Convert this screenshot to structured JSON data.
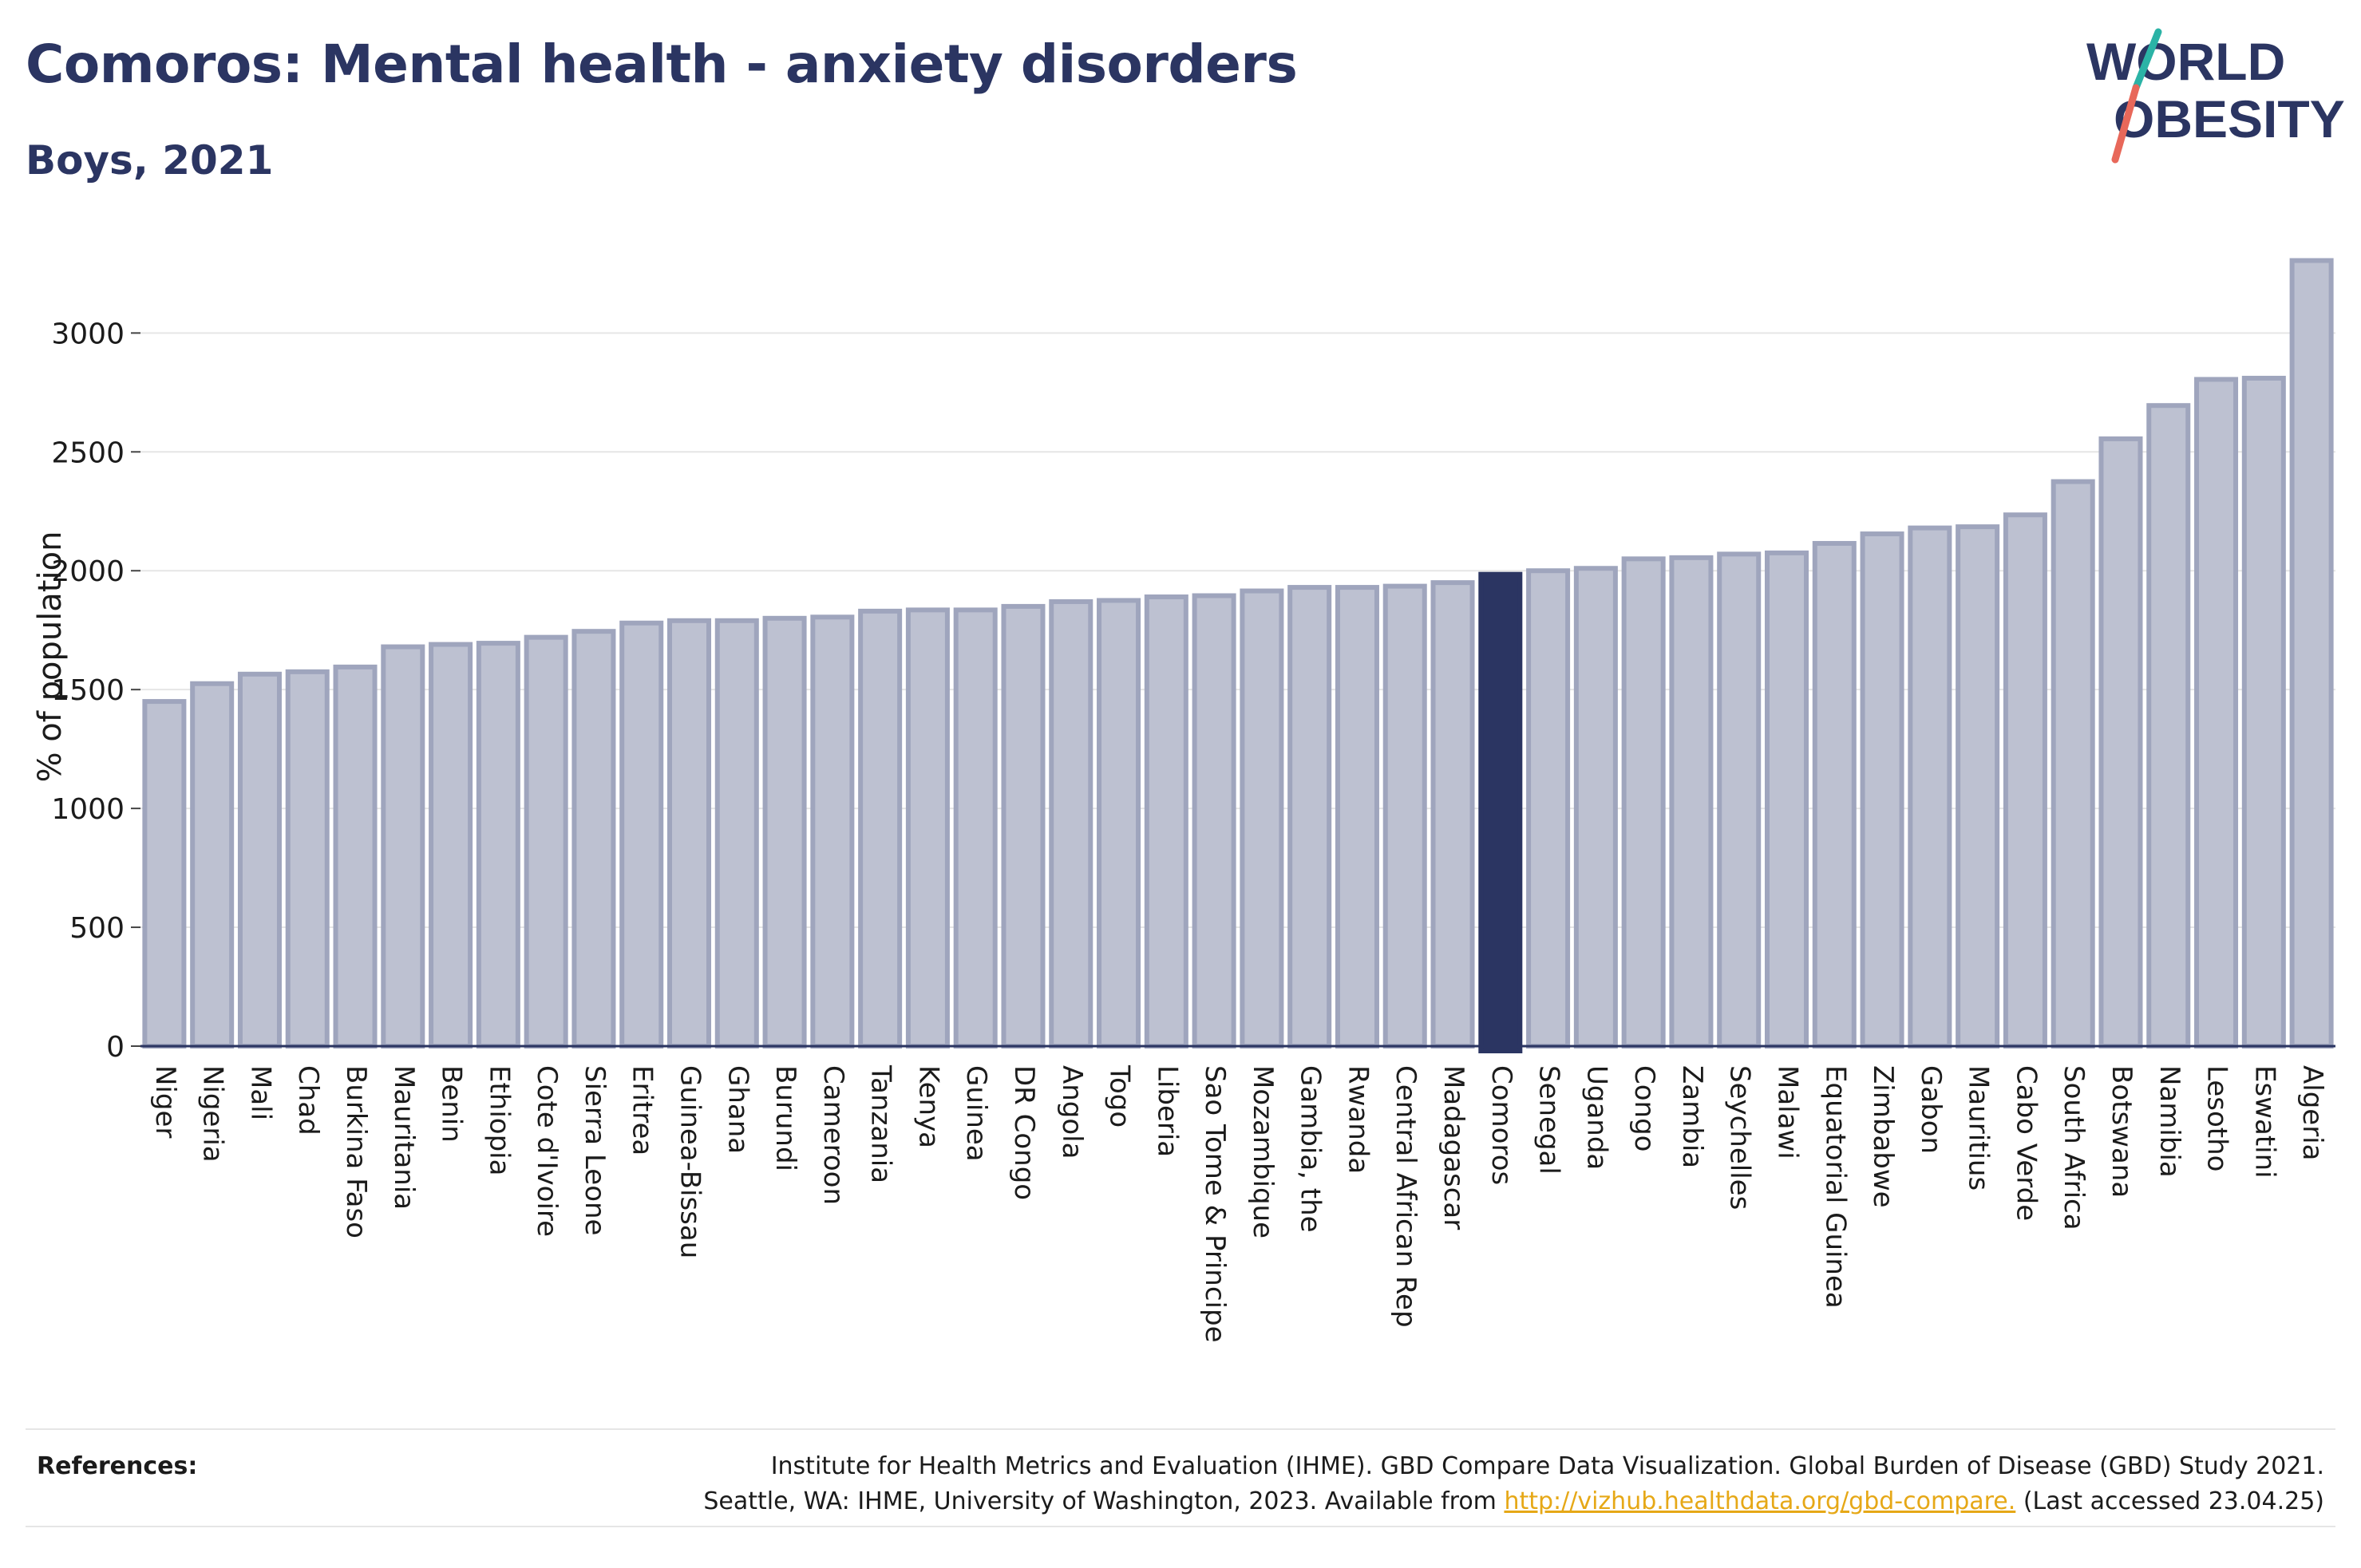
{
  "header": {
    "title": "Comoros: Mental health - anxiety disorders",
    "subtitle": "Boys, 2021"
  },
  "logo": {
    "line1": "WORLD",
    "line2": "OBESITY",
    "colors": {
      "text": "#2b3562",
      "slash_top": "#2bb3a6",
      "slash_bottom": "#e8685a"
    }
  },
  "colors": {
    "bar_fill": "#bdc1d1",
    "bar_stroke": "#9fa5bd",
    "highlight_fill": "#2b3562",
    "axis": "#2b3562",
    "grid": "#e6e6e6"
  },
  "chart_data": {
    "type": "bar",
    "title": "Comoros: Mental health - anxiety disorders",
    "subtitle": "Boys, 2021",
    "ylabel": "% of population",
    "xlabel": "",
    "ylim": [
      0,
      3310
    ],
    "yticks": [
      0,
      500,
      1000,
      1500,
      2000,
      2500,
      3000
    ],
    "grid": true,
    "highlight": "Comoros",
    "categories": [
      "Niger",
      "Nigeria",
      "Mali",
      "Chad",
      "Burkina Faso",
      "Mauritania",
      "Benin",
      "Ethiopia",
      "Cote d'Ivoire",
      "Sierra Leone",
      "Eritrea",
      "Guinea-Bissau",
      "Ghana",
      "Burundi",
      "Cameroon",
      "Tanzania",
      "Kenya",
      "Guinea",
      "DR Congo",
      "Angola",
      "Togo",
      "Liberia",
      "Sao Tome & Principe",
      "Mozambique",
      "Gambia, the",
      "Rwanda",
      "Central African Rep",
      "Madagascar",
      "Comoros",
      "Senegal",
      "Uganda",
      "Congo",
      "Zambia",
      "Seychelles",
      "Malawi",
      "Equatorial Guinea",
      "Zimbabwe",
      "Gabon",
      "Mauritius",
      "Cabo Verde",
      "South Africa",
      "Botswana",
      "Namibia",
      "Lesotho",
      "Eswatini",
      "Algeria"
    ],
    "values": [
      1450,
      1525,
      1565,
      1575,
      1595,
      1680,
      1690,
      1695,
      1720,
      1745,
      1780,
      1790,
      1790,
      1800,
      1805,
      1830,
      1835,
      1835,
      1850,
      1870,
      1875,
      1890,
      1895,
      1915,
      1930,
      1930,
      1935,
      1950,
      1985,
      2000,
      2010,
      2050,
      2055,
      2070,
      2075,
      2115,
      2155,
      2180,
      2185,
      2235,
      2375,
      2555,
      2695,
      2805,
      2810,
      3305
    ]
  },
  "references": {
    "label": "References:",
    "line1": "Institute for Health Metrics and Evaluation (IHME). GBD Compare Data Visualization. Global Burden of Disease (GBD) Study 2021.",
    "line2_prefix": "Seattle, WA: IHME, University of Washington, 2023. Available from ",
    "link": "http://vizhub.healthdata.org/gbd-compare.",
    "line2_suffix": " (Last accessed 23.04.25)"
  }
}
